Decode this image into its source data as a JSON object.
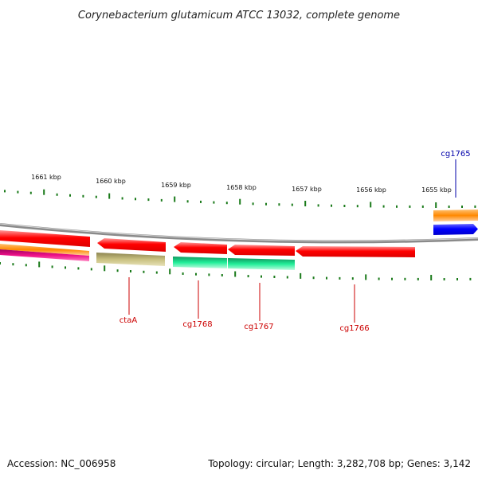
{
  "title": "Corynebacterium glutamicum ATCC 13032, complete genome",
  "footer": {
    "accession": "Accession: NC_006958",
    "summary": "Topology: circular; Length: 3,282,708 bp; Genes: 3,142"
  },
  "ruler": {
    "labels": [
      "1661 kbp",
      "1660 kbp",
      "1659 kbp",
      "1658 kbp",
      "1657 kbp",
      "1656 kbp",
      "1655 kbp"
    ]
  },
  "genes": [
    {
      "name": "ctaA",
      "color": "#cc0000"
    },
    {
      "name": "cg1768",
      "color": "#cc0000"
    },
    {
      "name": "cg1767",
      "color": "#cc0000"
    },
    {
      "name": "cg1766",
      "color": "#cc0000"
    },
    {
      "name": "cg1765",
      "color": "#0000aa"
    }
  ],
  "colors": {
    "backbone": "#8a8a8a",
    "cds": "#ff0000",
    "blue_feature": "#0000ff",
    "orange_feature": "#ff8800",
    "khaki_feature": "#c8c080",
    "green_feature": "#22ee99",
    "magenta_feature": "#ee1188",
    "tick": "#1a7a1a"
  }
}
